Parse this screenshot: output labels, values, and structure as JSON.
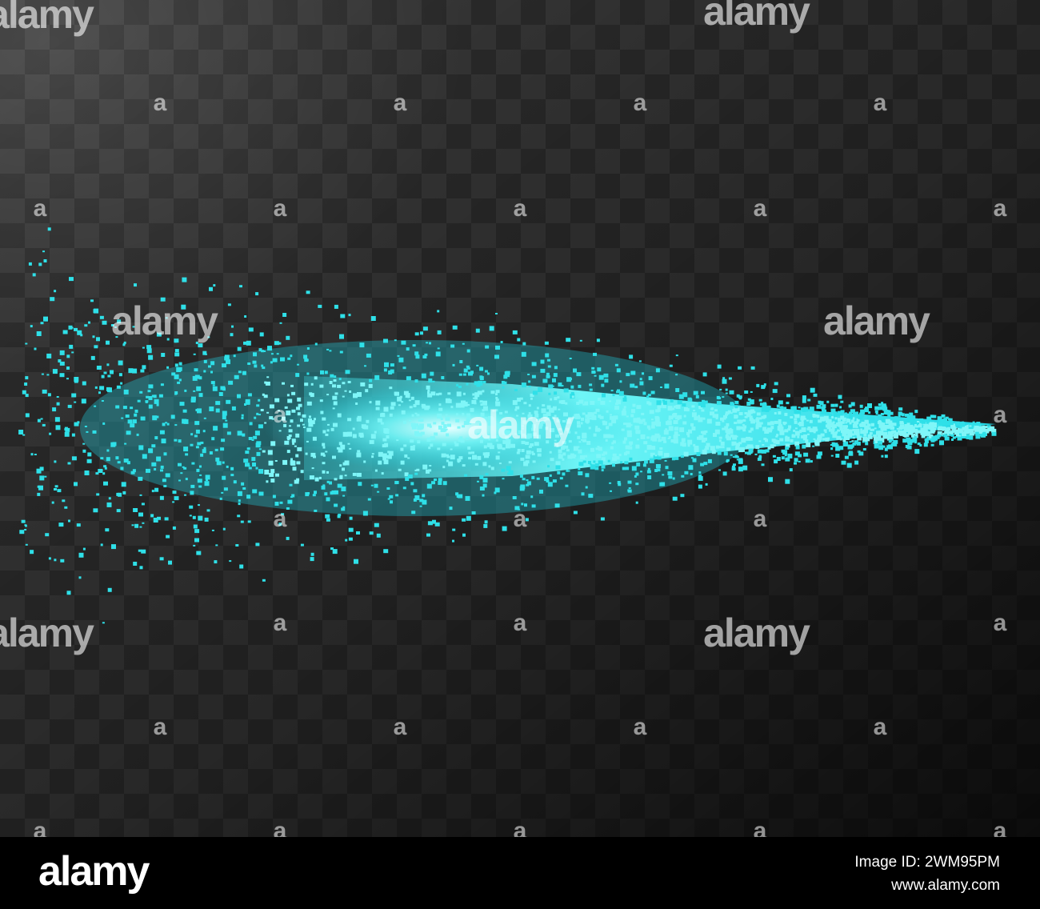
{
  "watermark": {
    "text": "alamy",
    "mark": "a"
  },
  "footer": {
    "logo": "alamy",
    "image_id": "Image ID: 2WM95PM",
    "website": "www.alamy.com"
  }
}
